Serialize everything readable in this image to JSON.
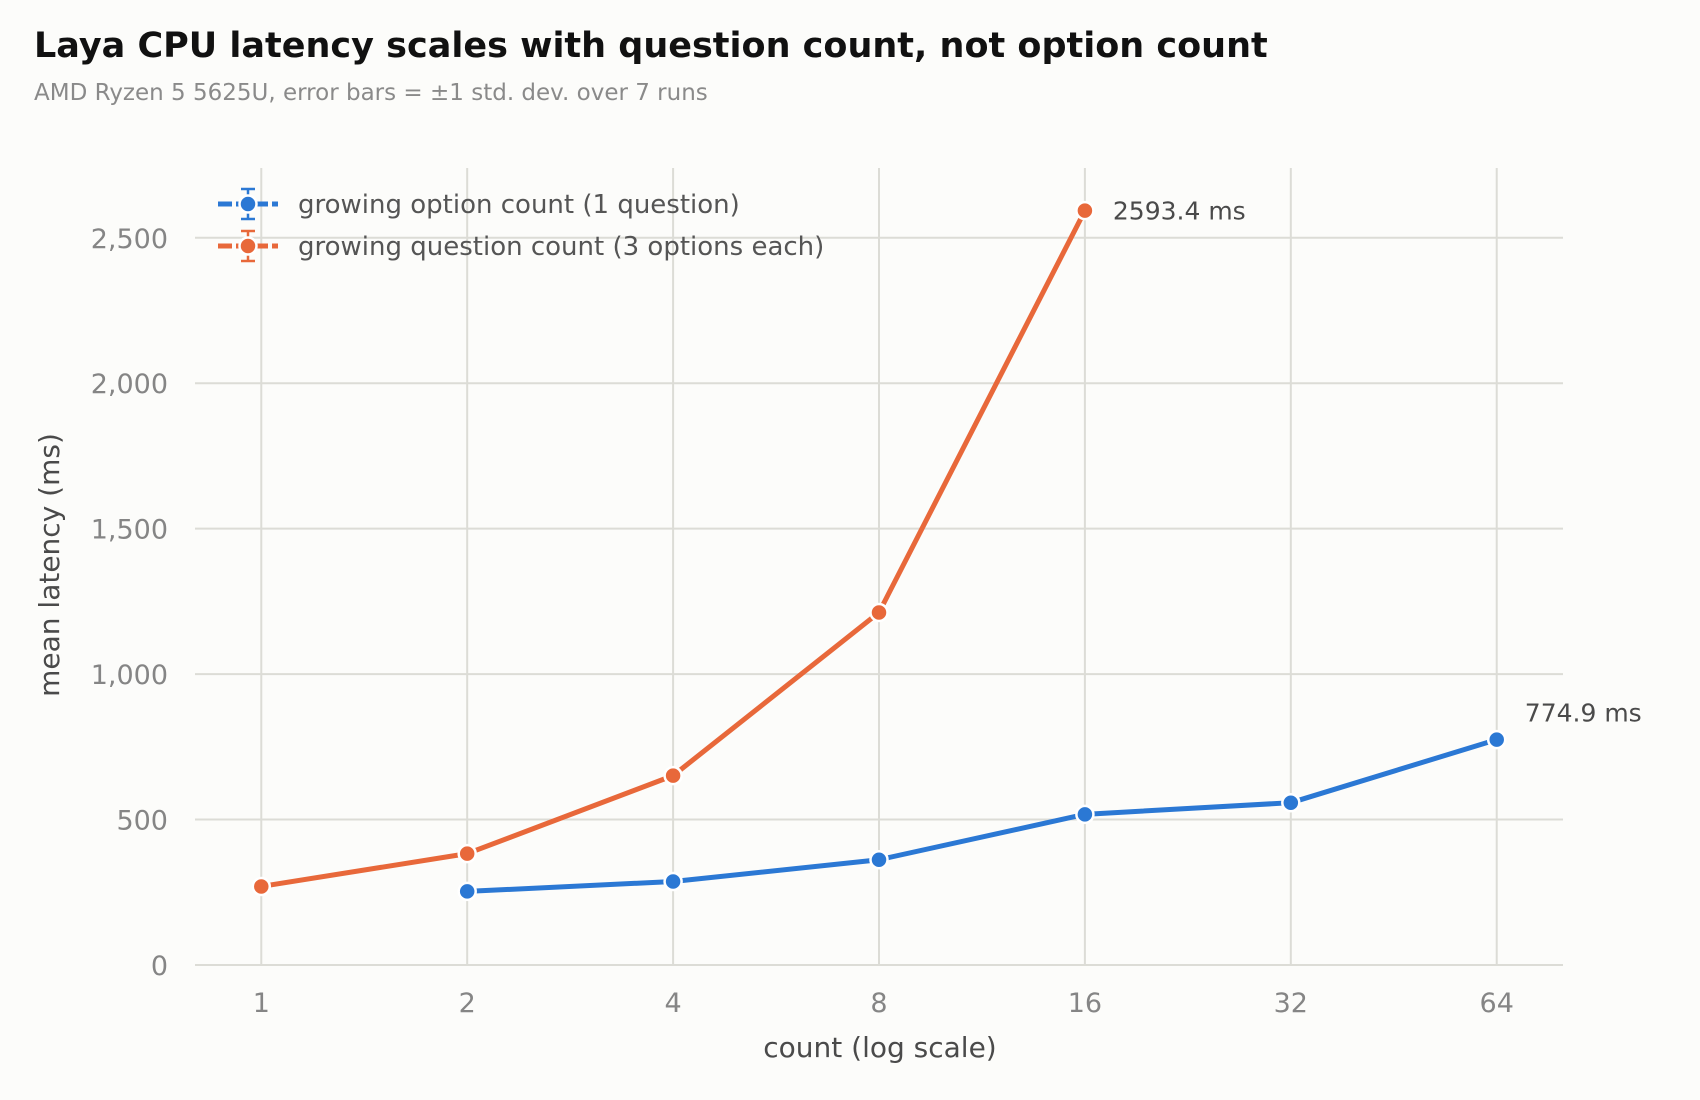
{
  "chart_data": {
    "type": "line",
    "title": "Laya CPU latency scales with question count, not option count",
    "subtitle": "AMD Ryzen 5 5625U, error bars = ±1 std. dev. over 7 runs",
    "xlabel": "count (log scale)",
    "ylabel": "mean latency (ms)",
    "x_scale": "log2",
    "xlim": [
      0.8,
      80
    ],
    "ylim": [
      0,
      2740
    ],
    "x_ticks": [
      1,
      2,
      4,
      8,
      16,
      32,
      64
    ],
    "x_tick_labels": [
      "1",
      "2",
      "4",
      "8",
      "16",
      "32",
      "64"
    ],
    "y_ticks": [
      0,
      500,
      1000,
      1500,
      2000,
      2500
    ],
    "y_tick_labels": [
      "0",
      "500",
      "1,000",
      "1,500",
      "2,000",
      "2,500"
    ],
    "grid": true,
    "legend_position": "top-left",
    "series": [
      {
        "name": "growing option count (1 question)",
        "color": "#2b78d4",
        "x": [
          2,
          4,
          8,
          16,
          32,
          64
        ],
        "y": [
          253,
          287,
          362,
          518,
          558,
          774.9
        ],
        "annotation": "774.9 ms"
      },
      {
        "name": "growing question count (3 options each)",
        "color": "#e8683a",
        "x": [
          1,
          2,
          4,
          8,
          16
        ],
        "y": [
          270,
          383,
          651,
          1212,
          2593.4
        ],
        "annotation": "2593.4 ms"
      }
    ]
  }
}
